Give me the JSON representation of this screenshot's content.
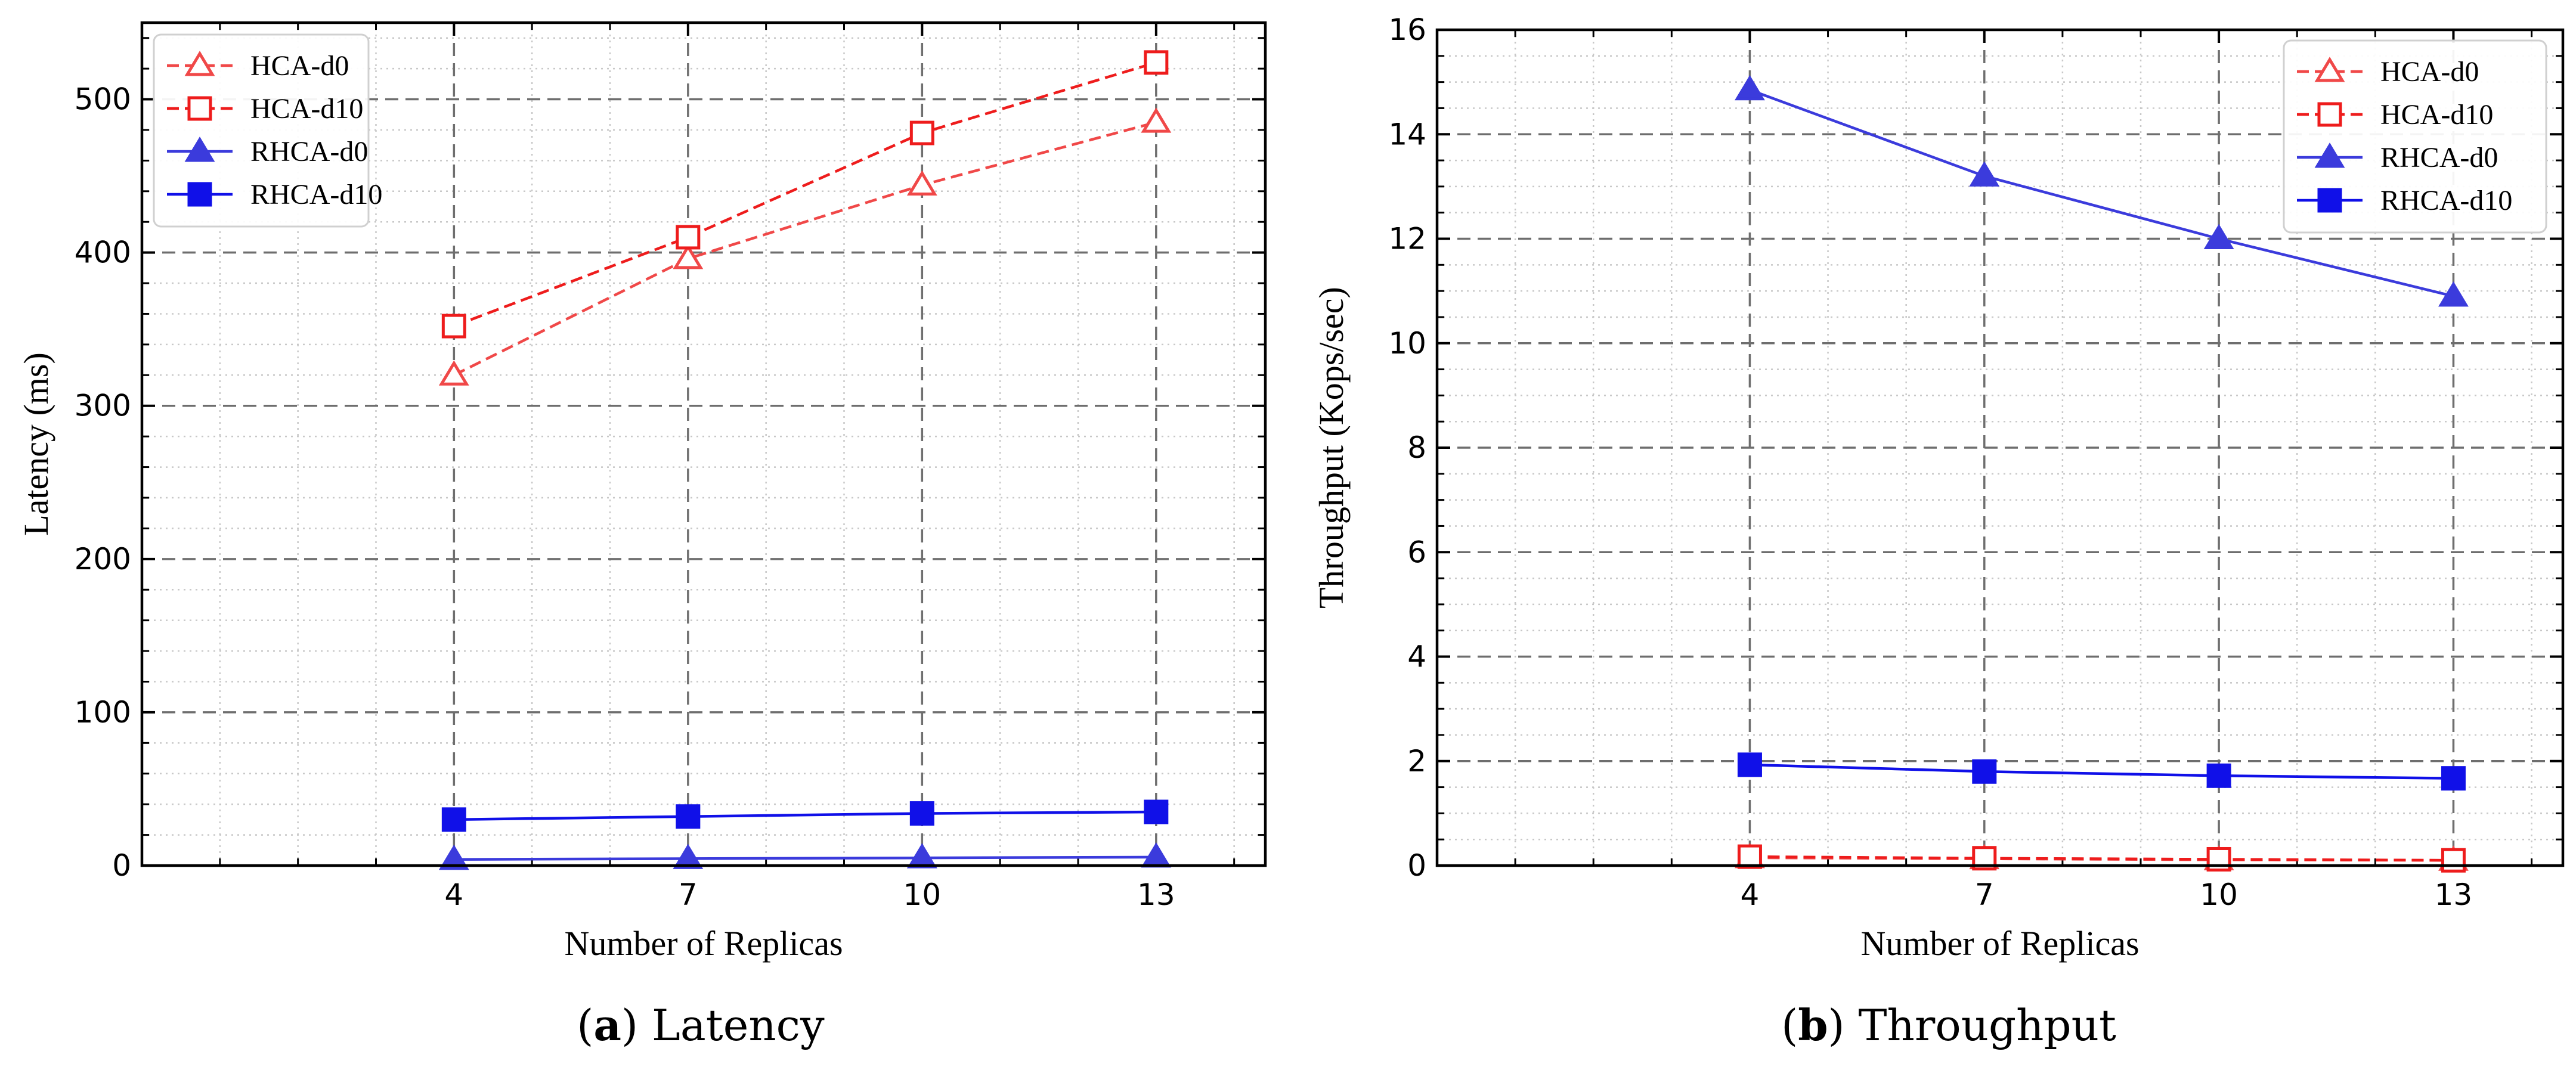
{
  "chart_data": [
    {
      "type": "line",
      "caption_letter": "a",
      "caption_text": "Latency",
      "xlabel": "Number of Replicas",
      "ylabel": "Latency (ms)",
      "x": [
        4,
        7,
        10,
        13
      ],
      "x_tick_labels": [
        "4",
        "7",
        "10",
        "13"
      ],
      "xlim": [
        0,
        14.4
      ],
      "ylim": [
        0,
        550
      ],
      "y_ticks": [
        0,
        100,
        200,
        300,
        400,
        500
      ],
      "y_tick_labels": [
        "0",
        "100",
        "200",
        "300",
        "400",
        "500"
      ],
      "y_minor_step": 20,
      "grid": true,
      "legend_position": "top-left",
      "series": [
        {
          "name": "HCA-d0",
          "values": [
            320,
            396,
            444,
            485
          ],
          "color": "#f04848",
          "dash": true,
          "marker": "triangle-open"
        },
        {
          "name": "HCA-d10",
          "values": [
            352,
            410,
            478,
            524
          ],
          "color": "#ee1c1c",
          "dash": true,
          "marker": "square-open"
        },
        {
          "name": "RHCA-d0",
          "values": [
            4,
            4.5,
            5,
            5.5
          ],
          "color": "#3b3bdc",
          "dash": false,
          "marker": "triangle-filled"
        },
        {
          "name": "RHCA-d10",
          "values": [
            30,
            32,
            34,
            35
          ],
          "color": "#1010e8",
          "dash": false,
          "marker": "square-filled"
        }
      ]
    },
    {
      "type": "line",
      "caption_letter": "b",
      "caption_text": "Throughput",
      "xlabel": "Number of Replicas",
      "ylabel": "Throughput (Kops/sec)",
      "x": [
        4,
        7,
        10,
        13
      ],
      "x_tick_labels": [
        "4",
        "7",
        "10",
        "13"
      ],
      "xlim": [
        0,
        14.4
      ],
      "ylim": [
        0,
        16
      ],
      "y_ticks": [
        0,
        2,
        4,
        6,
        8,
        10,
        12,
        14,
        16
      ],
      "y_tick_labels": [
        "0",
        "2",
        "4",
        "6",
        "8",
        "10",
        "12",
        "14",
        "16"
      ],
      "y_minor_step": 0.5,
      "grid": true,
      "legend_position": "top-right",
      "series": [
        {
          "name": "HCA-d0",
          "values": [
            0.15,
            0.13,
            0.11,
            0.1
          ],
          "color": "#f04848",
          "dash": true,
          "marker": "triangle-open"
        },
        {
          "name": "HCA-d10",
          "values": [
            0.17,
            0.14,
            0.12,
            0.1
          ],
          "color": "#ee1c1c",
          "dash": true,
          "marker": "square-open"
        },
        {
          "name": "RHCA-d0",
          "values": [
            14.85,
            13.2,
            12.0,
            10.9
          ],
          "color": "#3b3bdc",
          "dash": false,
          "marker": "triangle-filled"
        },
        {
          "name": "RHCA-d10",
          "values": [
            1.93,
            1.8,
            1.72,
            1.67
          ],
          "color": "#1010e8",
          "dash": false,
          "marker": "square-filled"
        }
      ]
    }
  ]
}
